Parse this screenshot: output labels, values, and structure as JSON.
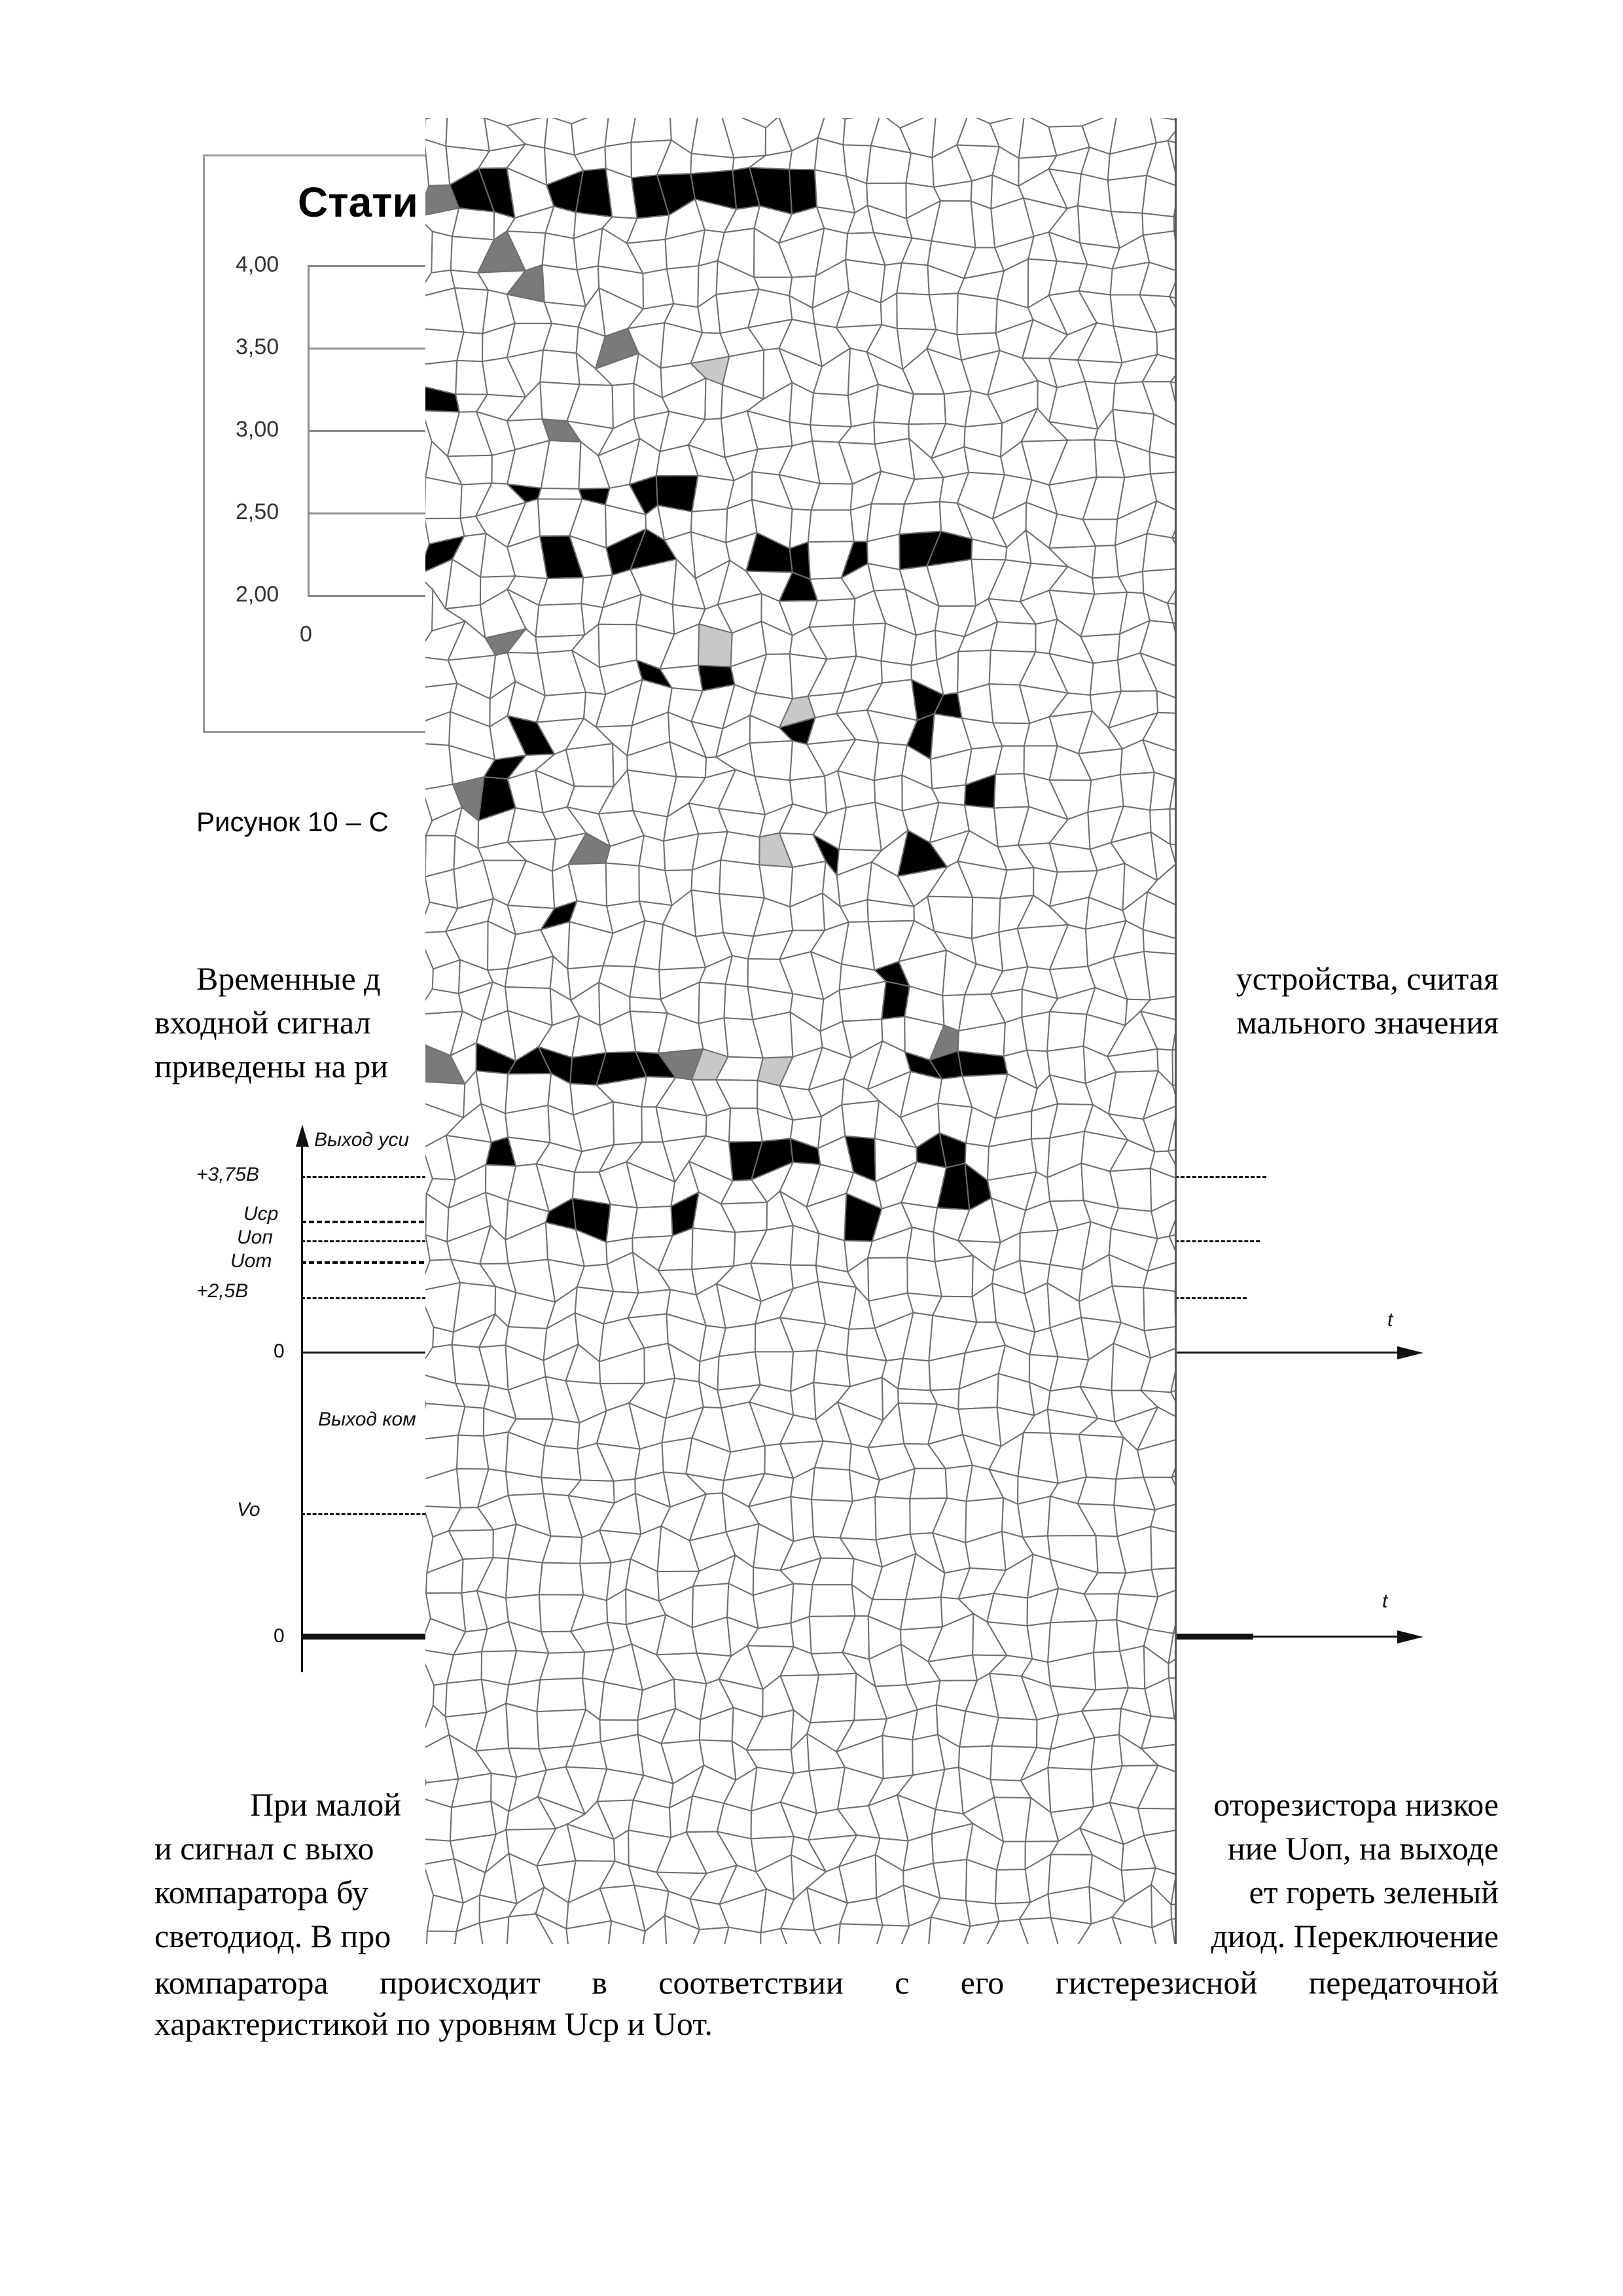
{
  "figure10": {
    "title": "Стати",
    "y_ticks": [
      "4,00",
      "3,50",
      "3,00",
      "2,50",
      "2,00"
    ],
    "x_tick": "0",
    "caption": "Рисунок 10 – С"
  },
  "paragraph1": {
    "lines": [
      "Временные д",
      "устройства, считая",
      "входной сигнал",
      "мального значения",
      "приведены на ри"
    ]
  },
  "timing_diagram": {
    "top_label": "Выход уси",
    "levels": [
      "+3,75В",
      "Uср",
      "Uоп",
      "Uот",
      "+2,5В"
    ],
    "zero_top": "0",
    "t_top": "t",
    "bottom_label": "Выход ком",
    "vo_label": "Vo",
    "zero_bottom": "0",
    "t_bottom": "t"
  },
  "paragraph2": {
    "lines": [
      "При малой",
      "оторезистора низкое",
      "и сигнал с выхо",
      "ние Uоп, на выходе",
      "компаратора бу",
      "ет гореть зеленый",
      "светодиод. В про",
      "диод. Переключение",
      "компаратора происходит в соответствии с его гистерезисной передаточной",
      "характеристикой по уровням Uср и Uот."
    ]
  },
  "colors": {
    "overlay_black": "#000000",
    "overlay_gray": "#7a7a7a",
    "overlay_light": "#c8c8c8"
  }
}
